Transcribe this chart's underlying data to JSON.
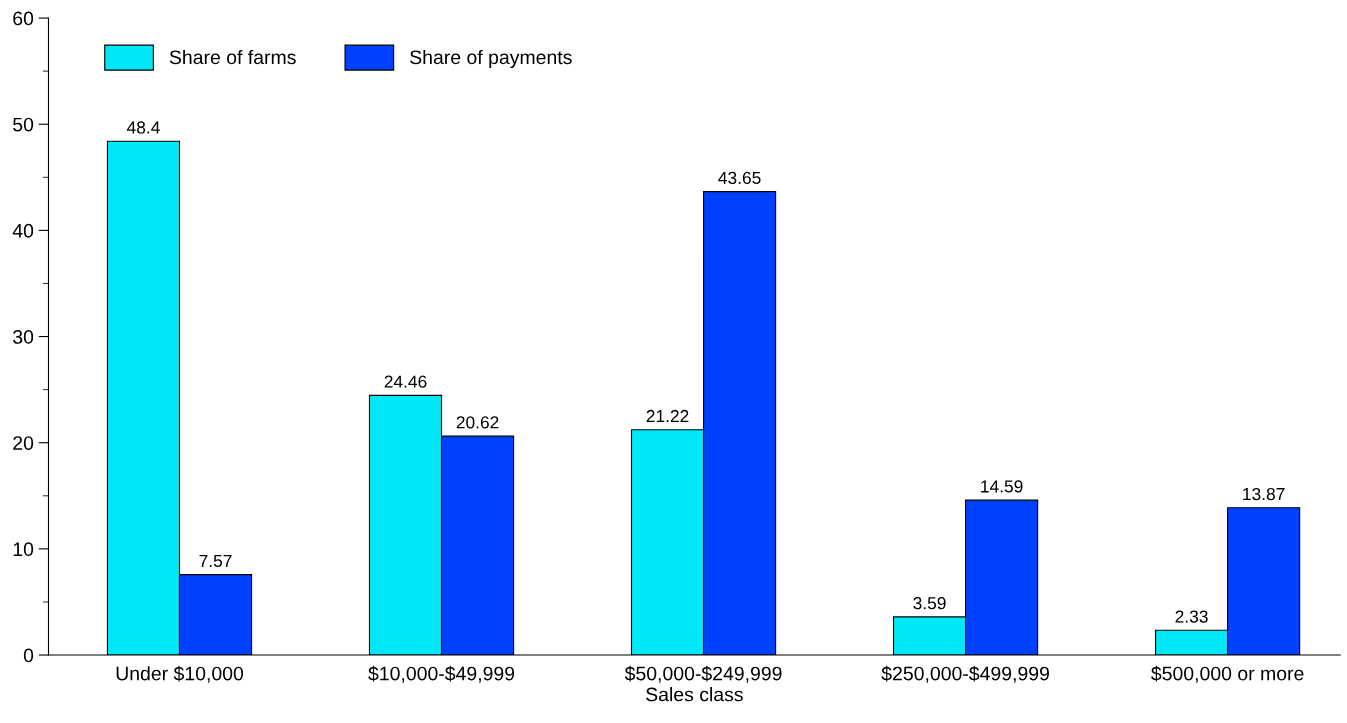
{
  "chart_data": {
    "type": "bar",
    "xlabel": "Sales class",
    "categories": [
      "Under $10,000",
      "$10,000-$49,999",
      "$50,000-$249,999",
      "$250,000-$499,999",
      "$500,000 or more"
    ],
    "series": [
      {
        "name": "Share of farms",
        "color": "#00e8f5",
        "values": [
          48.4,
          24.46,
          21.22,
          3.59,
          2.33
        ]
      },
      {
        "name": "Share of payments",
        "color": "#0040ff",
        "values": [
          7.57,
          20.62,
          43.65,
          14.59,
          13.87
        ]
      }
    ],
    "ylim": [
      0,
      60
    ],
    "yticks": [
      0,
      10,
      20,
      30,
      40,
      50,
      60
    ],
    "data_labels": true,
    "legend": "top left",
    "grid": false
  }
}
